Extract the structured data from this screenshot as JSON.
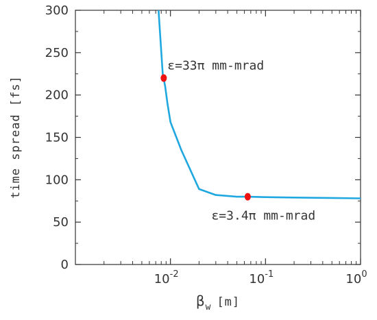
{
  "chart_data": {
    "type": "line",
    "xscale": "log",
    "xlim": [
      0.001,
      1
    ],
    "ylim": [
      0,
      300
    ],
    "xlabel_symbol": "β",
    "xlabel_sub": "w",
    "xlabel_unit": "[m]",
    "ylabel": "time spread [fs]",
    "grid": false,
    "line_color": "#1fa8e0",
    "marker_color": "#ee1111",
    "yticks": [
      0,
      50,
      100,
      150,
      200,
      250,
      300
    ],
    "ytick_labels": [
      "0",
      "50",
      "100",
      "150",
      "200",
      "250",
      "300"
    ],
    "xticks": [
      {
        "value": 0.01,
        "base": "10",
        "exp": "-2"
      },
      {
        "value": 0.1,
        "base": "10",
        "exp": "-1"
      },
      {
        "value": 1,
        "base": "10",
        "exp": "0"
      }
    ],
    "series": [
      {
        "x": [
          0.0075,
          0.0083,
          0.0088,
          0.0093,
          0.01,
          0.013,
          0.02,
          0.03,
          0.05,
          0.065,
          0.1,
          0.2,
          0.5,
          1.0
        ],
        "y": [
          300,
          225,
          210,
          190,
          168,
          135,
          89,
          82,
          80,
          80,
          79.5,
          79,
          78.5,
          78
        ]
      }
    ],
    "markers": [
      {
        "x": 0.0085,
        "y": 220
      },
      {
        "x": 0.065,
        "y": 80
      }
    ],
    "annotations": [
      {
        "text": "ε=33π mm-mrad",
        "x": 0.0093,
        "y": 230
      },
      {
        "text": "ε=3.4π mm-mrad",
        "x": 0.027,
        "y": 53
      }
    ]
  }
}
